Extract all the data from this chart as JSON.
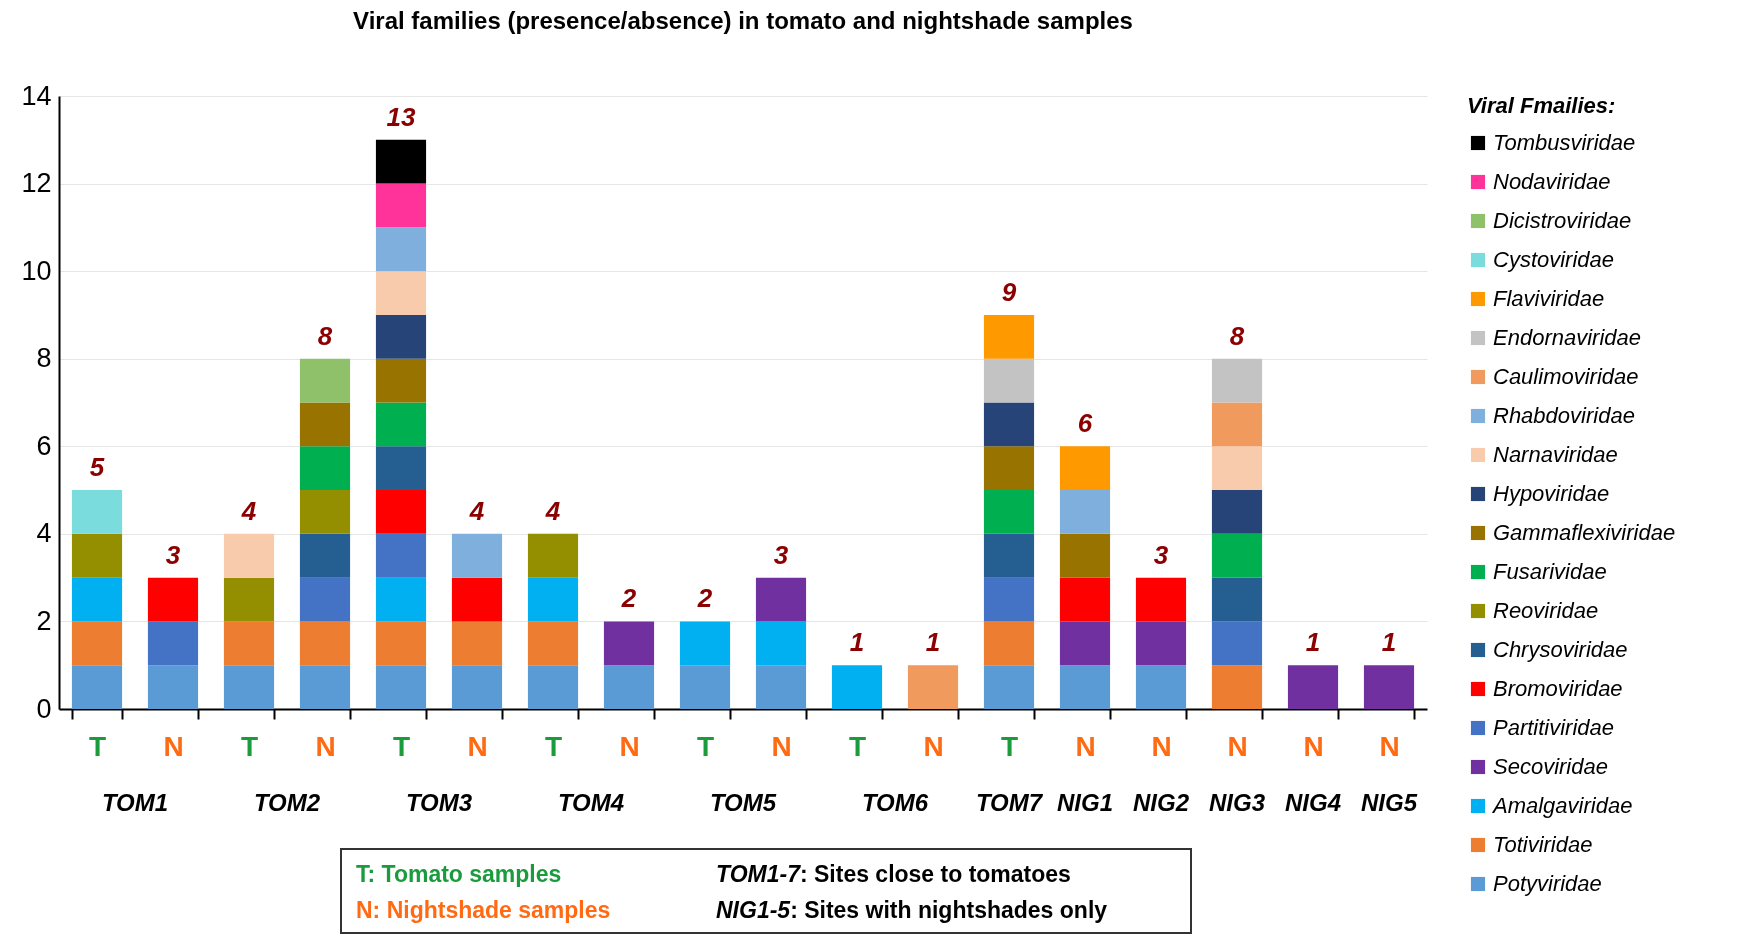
{
  "chart_data": {
    "type": "bar",
    "stacked": true,
    "title": "Viral families (presence/absence) in tomato and nightshade samples",
    "legend_title": "Viral Fmailies:",
    "legend": "right",
    "grid": "y",
    "categories": [
      "T",
      "N",
      "T",
      "N",
      "T",
      "N",
      "T",
      "N",
      "T",
      "N",
      "T",
      "N",
      "T",
      "N",
      "N",
      "N",
      "N",
      "N"
    ],
    "ylim": [
      0,
      14
    ],
    "yticks": [
      0,
      2,
      4,
      6,
      8,
      10,
      12,
      14
    ],
    "totals": [
      "5",
      "3",
      "4",
      "8",
      "13",
      "4",
      "4",
      "2",
      "2",
      "3",
      "1",
      "1",
      "9",
      "6",
      "3",
      "8",
      "1",
      "1"
    ],
    "annotations": [
      "TOM1",
      "TOM2",
      "TOM3",
      "TOM4",
      "TOM5",
      "TOM6",
      "TOM7",
      "NIG1",
      "NIG2",
      "NIG3",
      "NIG4",
      "NIG5",
      "T: Tomato samples",
      "N: Nightshade samples",
      "TOM1-7: Sites close to tomatoes",
      "NIG1-5: Sites with nightshades only"
    ],
    "series": [
      {
        "name": "Potyviridae",
        "color": "#5b9bd5",
        "values": [
          1,
          1,
          1,
          1,
          1,
          1,
          1,
          1,
          1,
          1,
          null,
          null,
          1,
          1,
          1,
          null,
          null,
          null
        ]
      },
      {
        "name": "Totiviridae",
        "color": "#ed7d31",
        "values": [
          1,
          null,
          1,
          1,
          1,
          1,
          1,
          null,
          null,
          null,
          null,
          null,
          1,
          null,
          null,
          1,
          null,
          null
        ]
      },
      {
        "name": "Amalgaviridae",
        "color": "#00b0f0",
        "values": [
          1,
          null,
          null,
          null,
          1,
          null,
          1,
          null,
          1,
          1,
          1,
          null,
          null,
          null,
          null,
          null,
          null,
          null
        ]
      },
      {
        "name": "Secoviridae",
        "color": "#7030a0",
        "values": [
          null,
          null,
          null,
          null,
          null,
          null,
          null,
          1,
          null,
          1,
          null,
          null,
          null,
          1,
          1,
          null,
          1,
          1
        ]
      },
      {
        "name": "Partitiviridae",
        "color": "#4472c4",
        "values": [
          null,
          1,
          null,
          1,
          1,
          null,
          null,
          null,
          null,
          null,
          null,
          null,
          1,
          null,
          null,
          1,
          null,
          null
        ]
      },
      {
        "name": "Bromoviridae",
        "color": "#ff0000",
        "values": [
          null,
          1,
          null,
          null,
          1,
          1,
          null,
          null,
          null,
          null,
          null,
          null,
          null,
          1,
          1,
          null,
          null,
          null
        ]
      },
      {
        "name": "Chrysoviridae",
        "color": "#255e91",
        "values": [
          null,
          null,
          null,
          1,
          1,
          null,
          null,
          null,
          null,
          null,
          null,
          null,
          1,
          null,
          null,
          1,
          null,
          null
        ]
      },
      {
        "name": "Reoviridae",
        "color": "#948f00",
        "values": [
          1,
          null,
          1,
          1,
          null,
          null,
          1,
          null,
          null,
          null,
          null,
          null,
          null,
          null,
          null,
          null,
          null,
          null
        ]
      },
      {
        "name": "Fusarividae",
        "color": "#00b050",
        "values": [
          null,
          null,
          null,
          1,
          1,
          null,
          null,
          null,
          null,
          null,
          null,
          null,
          1,
          null,
          null,
          1,
          null,
          null
        ]
      },
      {
        "name": "Gammaflexiviridae",
        "color": "#997300",
        "values": [
          null,
          null,
          null,
          1,
          1,
          null,
          null,
          null,
          null,
          null,
          null,
          null,
          1,
          1,
          null,
          null,
          null,
          null
        ]
      },
      {
        "name": "Hypoviridae",
        "color": "#264478",
        "values": [
          null,
          null,
          null,
          null,
          1,
          null,
          null,
          null,
          null,
          null,
          null,
          null,
          1,
          null,
          null,
          1,
          null,
          null
        ]
      },
      {
        "name": "Narnaviridae",
        "color": "#f8cbad",
        "values": [
          null,
          null,
          1,
          null,
          1,
          null,
          null,
          null,
          null,
          null,
          null,
          null,
          null,
          null,
          null,
          1,
          null,
          null
        ]
      },
      {
        "name": "Rhabdoviridae",
        "color": "#7fafdd",
        "values": [
          null,
          null,
          null,
          null,
          1,
          1,
          null,
          null,
          null,
          null,
          null,
          null,
          null,
          1,
          null,
          null,
          null,
          null
        ]
      },
      {
        "name": "Caulimoviridae",
        "color": "#f19a5e",
        "values": [
          null,
          null,
          null,
          null,
          null,
          null,
          null,
          null,
          null,
          null,
          null,
          1,
          null,
          null,
          null,
          1,
          null,
          null
        ]
      },
      {
        "name": "Endornaviridae",
        "color": "#c3c3c3",
        "values": [
          null,
          null,
          null,
          null,
          null,
          null,
          null,
          null,
          null,
          null,
          null,
          null,
          1,
          null,
          null,
          1,
          null,
          null
        ]
      },
      {
        "name": "Flaviviridae",
        "color": "#ff9900",
        "values": [
          null,
          null,
          null,
          null,
          null,
          null,
          null,
          null,
          null,
          null,
          null,
          null,
          1,
          1,
          null,
          null,
          null,
          null
        ]
      },
      {
        "name": "Cystoviridae",
        "color": "#7adcdc",
        "values": [
          1,
          null,
          null,
          null,
          null,
          null,
          null,
          null,
          null,
          null,
          null,
          null,
          null,
          null,
          null,
          null,
          null,
          null
        ]
      },
      {
        "name": "Dicistroviridae",
        "color": "#8fc16b",
        "values": [
          null,
          null,
          null,
          1,
          null,
          null,
          null,
          null,
          null,
          null,
          null,
          null,
          null,
          null,
          null,
          null,
          null,
          null
        ]
      },
      {
        "name": "Nodaviridae",
        "color": "#ff3399",
        "values": [
          null,
          null,
          null,
          null,
          1,
          null,
          null,
          null,
          null,
          null,
          null,
          null,
          null,
          null,
          null,
          null,
          null,
          null
        ]
      },
      {
        "name": "Tombusviridae",
        "color": "#000000",
        "values": [
          null,
          null,
          null,
          null,
          1,
          null,
          null,
          null,
          null,
          null,
          null,
          null,
          null,
          null,
          null,
          null,
          null,
          null
        ]
      }
    ]
  }
}
